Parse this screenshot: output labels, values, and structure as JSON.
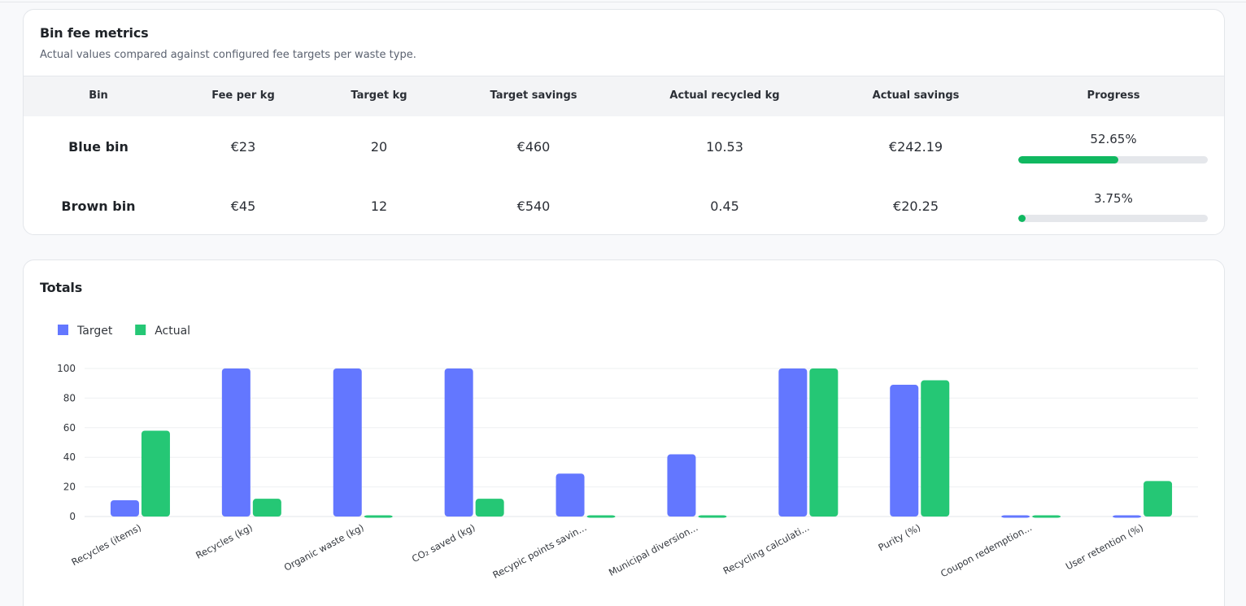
{
  "fee_metrics": {
    "title": "Bin fee metrics",
    "subtitle": "Actual values compared against configured fee targets per waste type.",
    "columns": [
      "Bin",
      "Fee per kg",
      "Target kg",
      "Target savings",
      "Actual recycled kg",
      "Actual savings",
      "Progress"
    ],
    "rows": [
      {
        "bin": "Blue bin",
        "fee_per_kg": "€23",
        "target_kg": "20",
        "target_savings": "€460",
        "actual_recycled_kg": "10.53",
        "actual_savings": "€242.19",
        "progress_label": "52.65%",
        "progress": 0.5265
      },
      {
        "bin": "Brown bin",
        "fee_per_kg": "€45",
        "target_kg": "12",
        "target_savings": "€540",
        "actual_recycled_kg": "0.45",
        "actual_savings": "€20.25",
        "progress_label": "3.75%",
        "progress": 0.0375
      }
    ],
    "progress_color": "#10b860"
  },
  "totals": {
    "title": "Totals"
  },
  "chart_data": {
    "type": "bar",
    "categories": [
      "Recycles (items)",
      "Recycles (kg)",
      "Organic waste (kg)",
      "CO₂ saved (kg)",
      "Recypic points savin...",
      "Municipal diversion...",
      "Recycling calculati...",
      "Purity (%)",
      "Coupon redemption...",
      "User retention (%)"
    ],
    "series": [
      {
        "name": "Target",
        "color": "#6377ff",
        "values": [
          11,
          100,
          100,
          100,
          29,
          42,
          100,
          89,
          0,
          0
        ]
      },
      {
        "name": "Actual",
        "color": "#25c775",
        "values": [
          58,
          12,
          0,
          12,
          0,
          0,
          100,
          92,
          0,
          24
        ]
      }
    ],
    "yticks": [
      0,
      20,
      40,
      60,
      80,
      100
    ],
    "ylim": [
      0,
      100
    ],
    "legend_position": "top-left",
    "grid": true
  }
}
